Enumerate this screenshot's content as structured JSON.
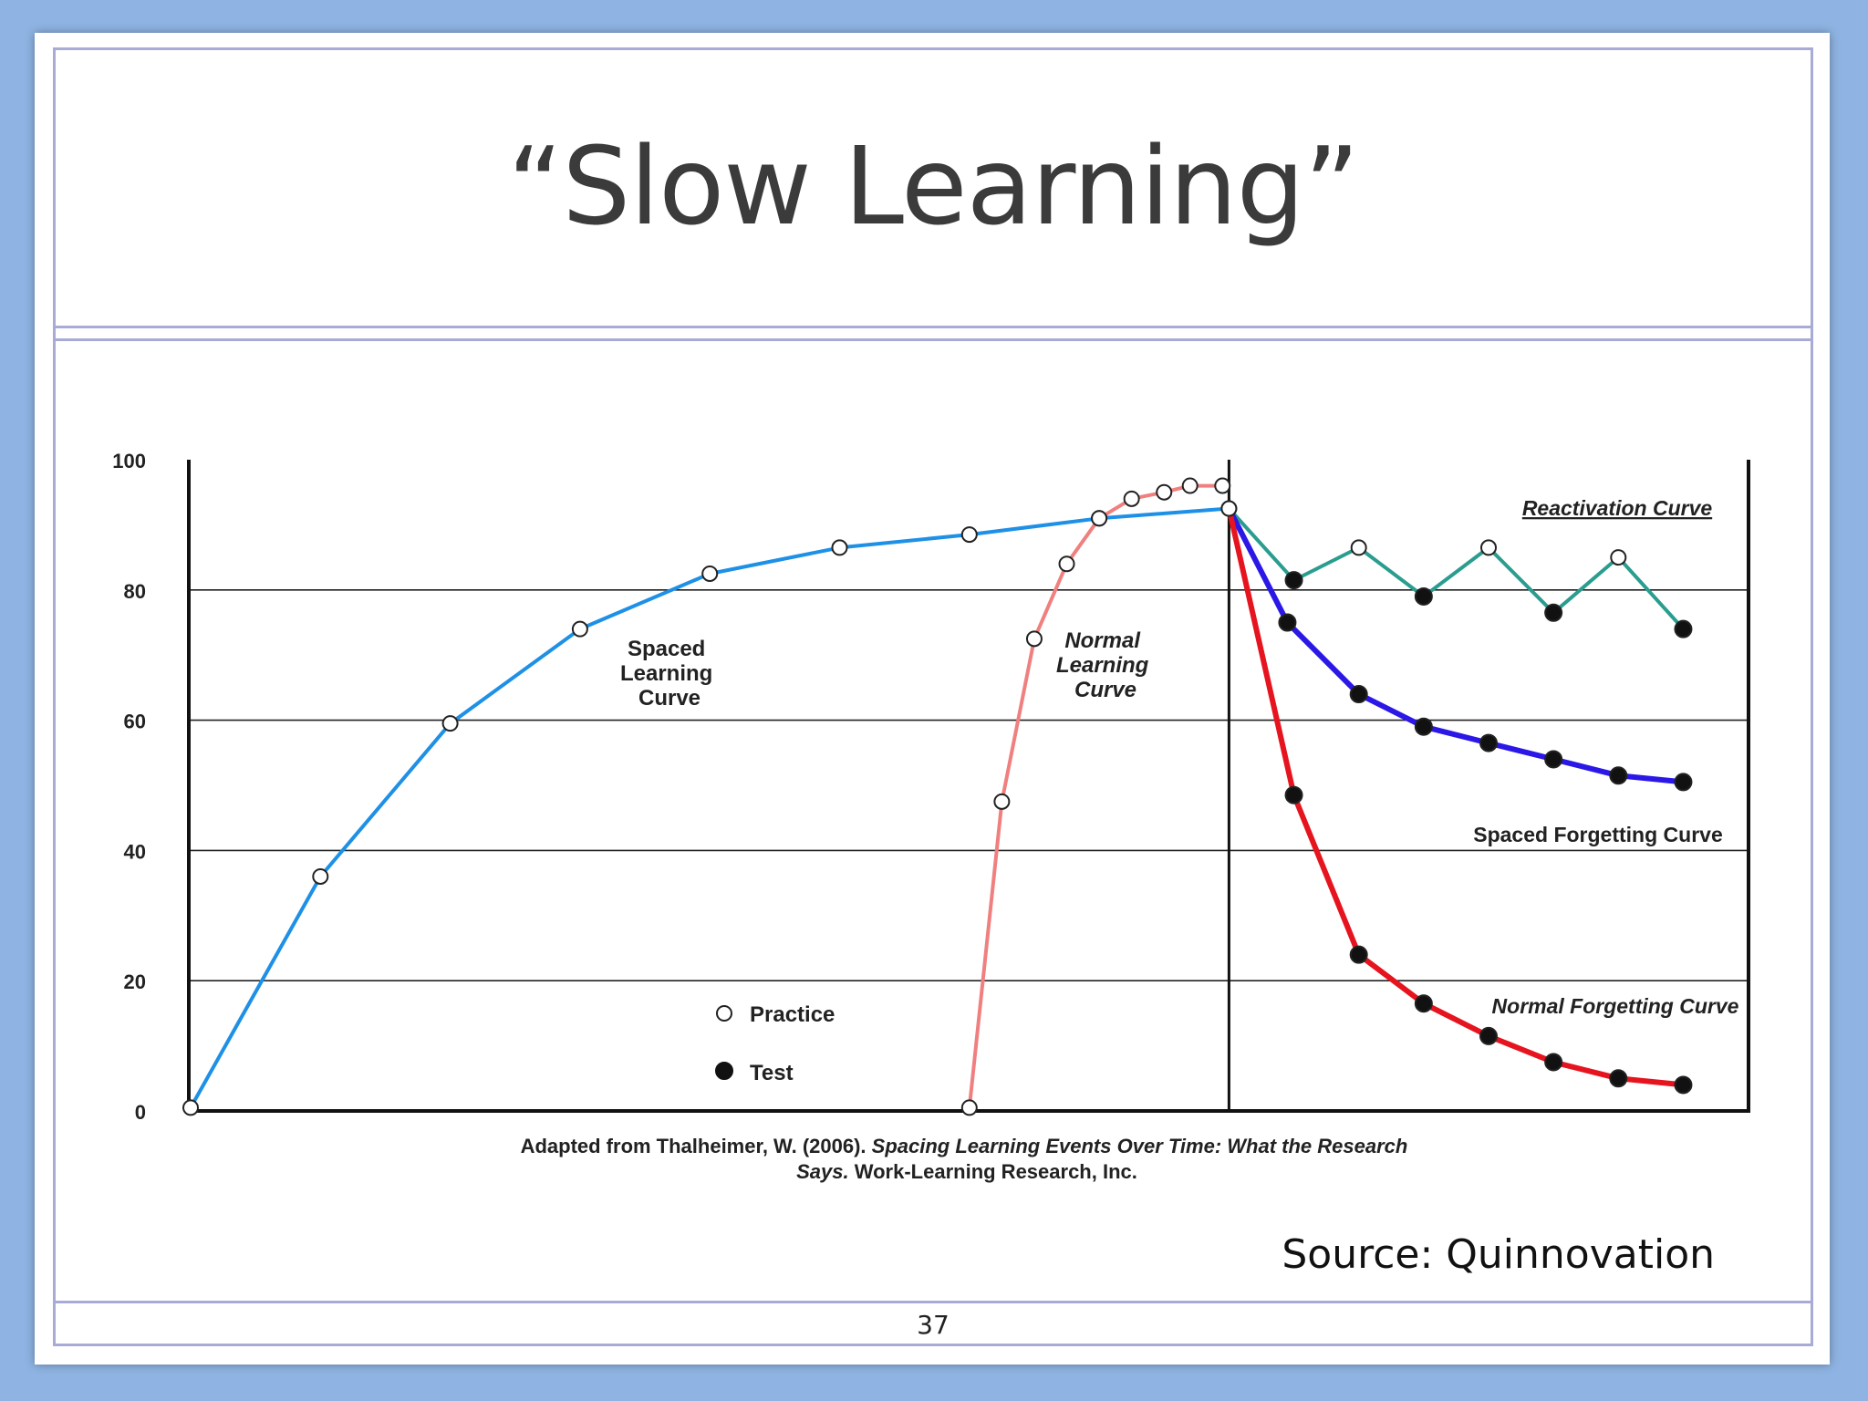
{
  "slide": {
    "title": "“Slow Learning”",
    "source": "Source: Quinnovation",
    "page_number": "37"
  },
  "chart_data": {
    "type": "line",
    "ylim": [
      0,
      100
    ],
    "yticks": [
      "0",
      "20",
      "40",
      "60",
      "80",
      "100"
    ],
    "grid": "horizontal",
    "x_unit": "unlabeled time steps (0–12)",
    "series": [
      {
        "name": "Spaced Learning Curve",
        "color": "#1e90e6",
        "marker": "practice",
        "x": [
          0,
          1,
          2,
          3,
          4,
          5,
          6,
          7,
          8
        ],
        "y": [
          0.5,
          36,
          59.5,
          74,
          82.5,
          86.5,
          88.5,
          91,
          92.5
        ]
      },
      {
        "name": "Normal Learning Curve",
        "color": "#f08080",
        "marker": "practice",
        "x": [
          6,
          6.25,
          6.5,
          6.75,
          7,
          7.25,
          7.5,
          7.7,
          7.95
        ],
        "y": [
          0.5,
          47.5,
          72.5,
          84,
          91,
          94,
          95,
          96,
          96
        ]
      },
      {
        "name": "Reactivation Curve",
        "color": "#2a9d8f",
        "marker": "mixed",
        "x": [
          8,
          8.5,
          9,
          9.5,
          10,
          10.5,
          11,
          11.5
        ],
        "y": [
          92.5,
          81.5,
          86.5,
          79,
          86.5,
          76.5,
          85,
          74
        ],
        "markers": [
          "practice",
          "test",
          "practice",
          "test",
          "practice",
          "test",
          "practice",
          "test"
        ]
      },
      {
        "name": "Spaced Forgetting Curve",
        "color": "#2b18e6",
        "marker": "test",
        "x": [
          8,
          8.45,
          9,
          9.5,
          10,
          10.5,
          11,
          11.5
        ],
        "y": [
          92.5,
          75,
          64,
          59,
          56.5,
          54,
          51.5,
          50.5
        ]
      },
      {
        "name": "Normal Forgetting Curve",
        "color": "#e6141e",
        "marker": "test",
        "x": [
          8,
          8.5,
          9,
          9.5,
          10,
          10.5,
          11,
          11.5
        ],
        "y": [
          92.5,
          48.5,
          24,
          16.5,
          11.5,
          7.5,
          5,
          4
        ]
      }
    ],
    "legend": [
      {
        "label": "Practice",
        "marker": "practice"
      },
      {
        "label": "Test",
        "marker": "test"
      }
    ],
    "annotations": {
      "spaced_learning": [
        "Spaced",
        "Learning",
        "Curve"
      ],
      "normal_learning": [
        "Normal",
        "Learning",
        "Curve"
      ],
      "reactivation": "Reactivation Curve",
      "spaced_forgetting": "Spaced Forgetting Curve",
      "normal_forgetting": "Normal Forgetting Curve"
    },
    "caption": {
      "line1_plain": "Adapted from Thalheimer, W. (2006). ",
      "line1_italic": "Spacing Learning Events Over Time: What the Research",
      "line2_italic": "Says.",
      "line2_plain": " Work-Learning Research, Inc."
    }
  }
}
